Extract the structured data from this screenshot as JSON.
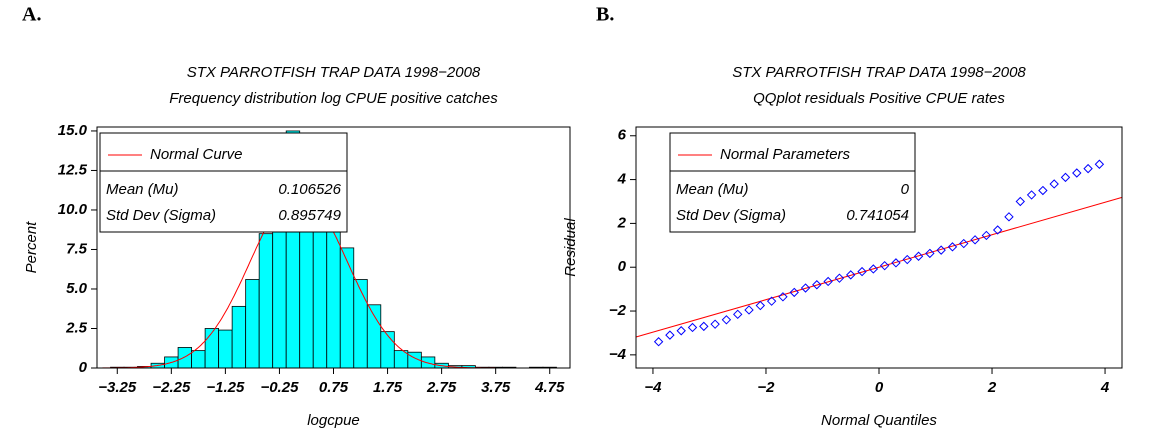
{
  "chart_data": [
    {
      "type": "histogram",
      "panel_label": "A.",
      "title": "STX PARROTFISH TRAP DATA 1998−2008",
      "subtitle": "Frequency distribution log CPUE positive catches",
      "x_label": "logcpue",
      "y_label": "Percent",
      "bins": [
        -3.375,
        -3.125,
        -2.875,
        -2.625,
        -2.375,
        -2.125,
        -1.875,
        -1.625,
        -1.375,
        -1.125,
        -0.875,
        -0.625,
        -0.375,
        -0.125,
        0.125,
        0.375,
        0.625,
        0.875,
        1.125,
        1.375,
        1.625,
        1.875,
        2.125,
        2.375,
        2.625,
        2.875,
        3.125,
        3.375,
        3.625,
        3.875,
        4.125,
        4.375,
        4.625,
        4.875
      ],
      "values": [
        0.05,
        0.05,
        0.1,
        0.3,
        0.7,
        1.3,
        1.1,
        2.5,
        2.4,
        3.9,
        5.6,
        8.5,
        10.8,
        15.0,
        9.7,
        11.0,
        10.0,
        7.6,
        5.6,
        4.0,
        2.3,
        1.1,
        1.0,
        0.7,
        0.3,
        0.15,
        0.15,
        0.05,
        0.05,
        0.05,
        0,
        0.05,
        0.05
      ],
      "color": "#00ffff",
      "curve_color": "#ff0000",
      "legend": {
        "curve": "Normal Curve",
        "mean_label": "Mean (Mu)",
        "sigma_label": "Std Dev (Sigma)"
      },
      "mean": 0.106526,
      "sigma": 0.895749,
      "xlim": [
        -3.625,
        5.125
      ],
      "xticks": [
        {
          "value": -3.25,
          "label": "−3.25"
        },
        {
          "value": -2.25,
          "label": "−2.25"
        },
        {
          "value": -1.25,
          "label": "−1.25"
        },
        {
          "value": -0.25,
          "label": "−0.25"
        },
        0.75,
        1.75,
        2.75,
        3.75,
        4.75
      ],
      "ylim": [
        0,
        15.25
      ],
      "yticks": [
        0,
        2.5,
        {
          "value": 5,
          "label": "5.0"
        },
        7.5,
        {
          "value": 10,
          "label": "10.0"
        },
        12.5,
        {
          "value": 15,
          "label": "15.0"
        }
      ]
    },
    {
      "type": "scatter",
      "panel_label": "B.",
      "title": "STX PARROTFISH TRAP DATA 1998−2008",
      "subtitle": "QQplot residuals Positive CPUE rates",
      "x_label": "Normal Quantiles",
      "y_label": "Residual",
      "x": [
        -3.9,
        -3.7,
        -3.5,
        -3.3,
        -3.1,
        -2.9,
        -2.7,
        -2.5,
        -2.3,
        -2.1,
        -1.9,
        -1.7,
        -1.5,
        -1.3,
        -1.1,
        -0.9,
        -0.7,
        -0.5,
        -0.3,
        -0.1,
        0.1,
        0.3,
        0.5,
        0.7,
        0.9,
        1.1,
        1.3,
        1.5,
        1.7,
        1.9,
        2.1,
        2.3,
        2.5,
        2.7,
        2.9,
        3.1,
        3.3,
        3.5,
        3.7,
        3.9
      ],
      "values": [
        -3.4,
        -3.1,
        -2.9,
        -2.75,
        -2.7,
        -2.6,
        -2.4,
        -2.15,
        -1.95,
        -1.75,
        -1.55,
        -1.35,
        -1.15,
        -0.95,
        -0.8,
        -0.65,
        -0.5,
        -0.35,
        -0.2,
        -0.08,
        0.07,
        0.2,
        0.35,
        0.5,
        0.63,
        0.78,
        0.93,
        1.08,
        1.25,
        1.45,
        1.7,
        2.3,
        3.0,
        3.3,
        3.5,
        3.8,
        4.1,
        4.3,
        4.5,
        4.7
      ],
      "color": "#0000ff",
      "line_color": "#ff0000",
      "legend": {
        "curve": "Normal Parameters",
        "mean_label": "Mean (Mu)",
        "sigma_label": "Std Dev (Sigma)"
      },
      "mean": 0,
      "sigma": 0.741054,
      "xlim": [
        -4.3,
        4.3
      ],
      "xticks": [
        {
          "value": -4,
          "label": "−4"
        },
        {
          "value": -2,
          "label": "−2"
        },
        0,
        2,
        4
      ],
      "ylim": [
        -4.6,
        6.4
      ],
      "yticks": [
        {
          "value": -4,
          "label": "−4"
        },
        {
          "value": -2,
          "label": "−2"
        },
        0,
        2,
        4,
        6
      ]
    }
  ]
}
